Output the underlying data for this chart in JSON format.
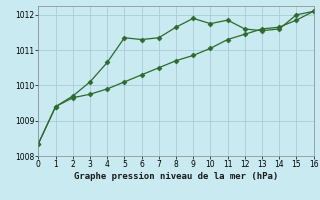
{
  "series1_x": [
    0,
    1,
    2,
    3,
    4,
    5,
    6,
    7,
    8,
    9,
    10,
    11,
    12,
    13,
    14,
    15,
    16
  ],
  "series1_y": [
    1008.35,
    1009.4,
    1009.7,
    1010.1,
    1010.65,
    1011.35,
    1011.3,
    1011.35,
    1011.65,
    1011.9,
    1011.75,
    1011.85,
    1011.6,
    1011.55,
    1011.6,
    1012.0,
    1012.1
  ],
  "series2_x": [
    0,
    1,
    2,
    3,
    4,
    5,
    6,
    7,
    8,
    9,
    10,
    11,
    12,
    13,
    14,
    15,
    16
  ],
  "series2_y": [
    1008.35,
    1009.4,
    1009.65,
    1009.75,
    1009.9,
    1010.1,
    1010.3,
    1010.5,
    1010.7,
    1010.85,
    1011.05,
    1011.3,
    1011.45,
    1011.6,
    1011.65,
    1011.85,
    1012.1
  ],
  "line_color": "#2d6a2d",
  "bg_color": "#c8eaf0",
  "grid_color": "#aaccd8",
  "xlabel": "Graphe pression niveau de la mer (hPa)",
  "xlim": [
    0,
    16
  ],
  "ylim": [
    1008.0,
    1012.25
  ],
  "yticks": [
    1008,
    1009,
    1010,
    1011,
    1012
  ],
  "xticks": [
    0,
    1,
    2,
    3,
    4,
    5,
    6,
    7,
    8,
    9,
    10,
    11,
    12,
    13,
    14,
    15,
    16
  ],
  "tick_fontsize": 5.5,
  "xlabel_fontsize": 6.5
}
